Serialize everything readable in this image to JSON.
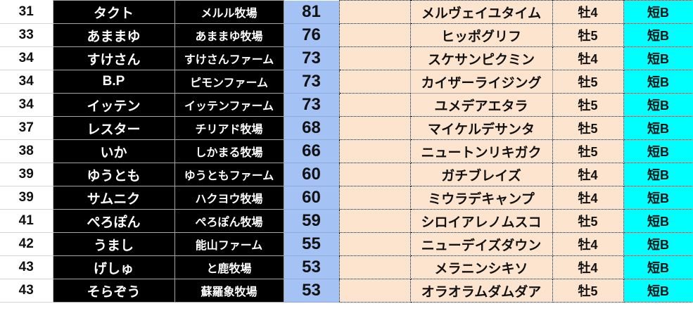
{
  "colors": {
    "name_bg": "#000000",
    "score_bg": "#a4c2f4",
    "horse_bg": "#fce4cf",
    "class_bg": "#00ffff"
  },
  "rows": [
    {
      "rank": "31",
      "name": "タクト",
      "farm": "メルル牧場",
      "score": "81",
      "horse": "メルヴェイユタイム",
      "sex": "牡4",
      "class": "短B"
    },
    {
      "rank": "33",
      "name": "あままゆ",
      "farm": "あままゆ牧場",
      "score": "76",
      "horse": "ヒッポグリフ",
      "sex": "牡5",
      "class": "短B"
    },
    {
      "rank": "34",
      "name": "すけさん",
      "farm": "すけさんファーム",
      "score": "73",
      "horse": "スケサンピクミン",
      "sex": "牡4",
      "class": "短B"
    },
    {
      "rank": "34",
      "name": "B.P",
      "farm": "ピモンファーム",
      "score": "73",
      "horse": "カイザーライジング",
      "sex": "牡5",
      "class": "短B"
    },
    {
      "rank": "34",
      "name": "イッテン",
      "farm": "イッテンファーム",
      "score": "73",
      "horse": "ユメデアエタラ",
      "sex": "牡5",
      "class": "短B"
    },
    {
      "rank": "37",
      "name": "レスター",
      "farm": "チリアド牧場",
      "score": "68",
      "horse": "マイケルデサンタ",
      "sex": "牡5",
      "class": "短B"
    },
    {
      "rank": "38",
      "name": "いか",
      "farm": "しかまる牧場",
      "score": "66",
      "horse": "ニュートンリキガク",
      "sex": "牡5",
      "class": "短B"
    },
    {
      "rank": "39",
      "name": "ゆうとも",
      "farm": "ゆうともファーム",
      "score": "60",
      "horse": "ガチブレイズ",
      "sex": "牡4",
      "class": "短B"
    },
    {
      "rank": "39",
      "name": "サムニク",
      "farm": "ハクヨウ牧場",
      "score": "60",
      "horse": "ミウラデキャンプ",
      "sex": "牡4",
      "class": "短B"
    },
    {
      "rank": "41",
      "name": "ぺろぽん",
      "farm": "ぺろぽん牧場",
      "score": "59",
      "horse": "シロイアレノムスコ",
      "sex": "牡5",
      "class": "短B"
    },
    {
      "rank": "42",
      "name": "うまし",
      "farm": "能山ファーム",
      "score": "55",
      "horse": "ニューデイズダウン",
      "sex": "牡4",
      "class": "短B"
    },
    {
      "rank": "43",
      "name": "げしゅ",
      "farm": "と鹿牧場",
      "score": "53",
      "horse": "メラニンシキソ",
      "sex": "牡4",
      "class": "短B"
    },
    {
      "rank": "43",
      "name": "そらぞう",
      "farm": "蘇羅象牧場",
      "score": "53",
      "horse": "オラオラムダムダア",
      "sex": "牡5",
      "class": "短B"
    }
  ]
}
